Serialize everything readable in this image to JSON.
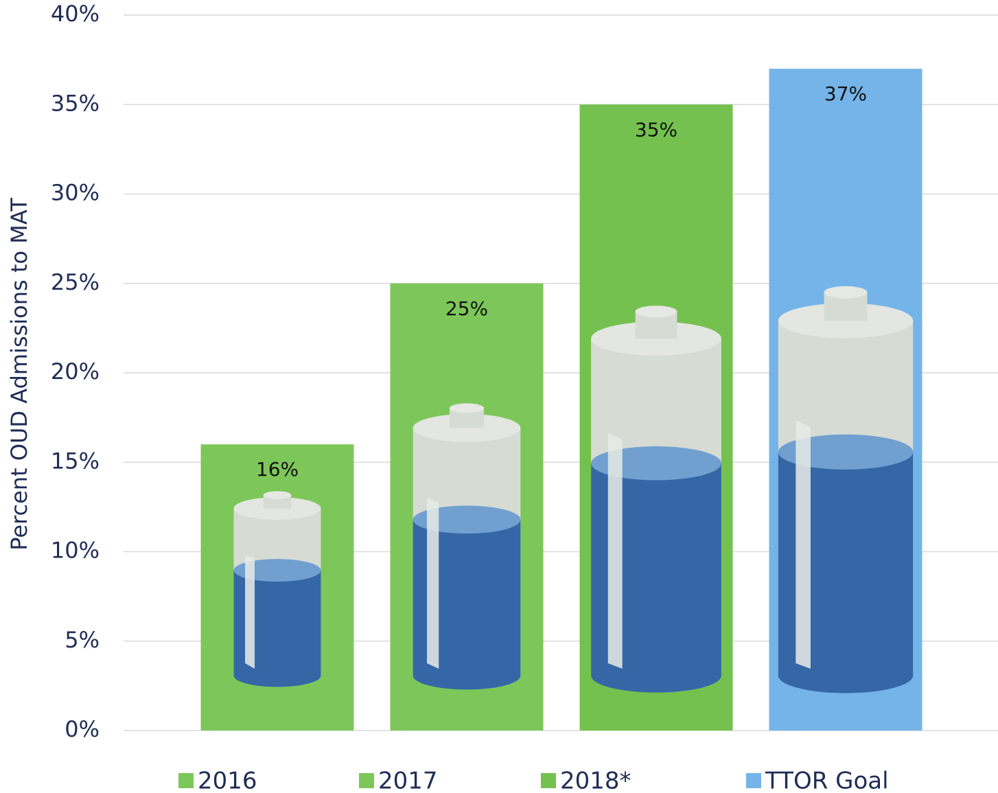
{
  "chart_data": {
    "type": "bar",
    "y_axis_label": "Percent OUD Admissions to MAT",
    "categories": [
      "2016",
      "2017",
      "2018*",
      "TTOR Goal"
    ],
    "values": [
      16,
      25,
      35,
      37
    ],
    "value_labels": [
      "16%",
      "25%",
      "35%",
      "37%"
    ],
    "colors": [
      "#7dc75a",
      "#7dc75a",
      "#74c14f",
      "#74b4e8"
    ],
    "ylim": [
      0,
      40
    ],
    "yticks": [
      {
        "value": 0,
        "label": "0%"
      },
      {
        "value": 5,
        "label": "5%"
      },
      {
        "value": 10,
        "label": "10%"
      },
      {
        "value": 15,
        "label": "15%"
      },
      {
        "value": 20,
        "label": "20%"
      },
      {
        "value": 25,
        "label": "25%"
      },
      {
        "value": 30,
        "label": "30%"
      },
      {
        "value": 35,
        "label": "35%"
      },
      {
        "value": 40,
        "label": "40%"
      }
    ],
    "grid": true
  }
}
